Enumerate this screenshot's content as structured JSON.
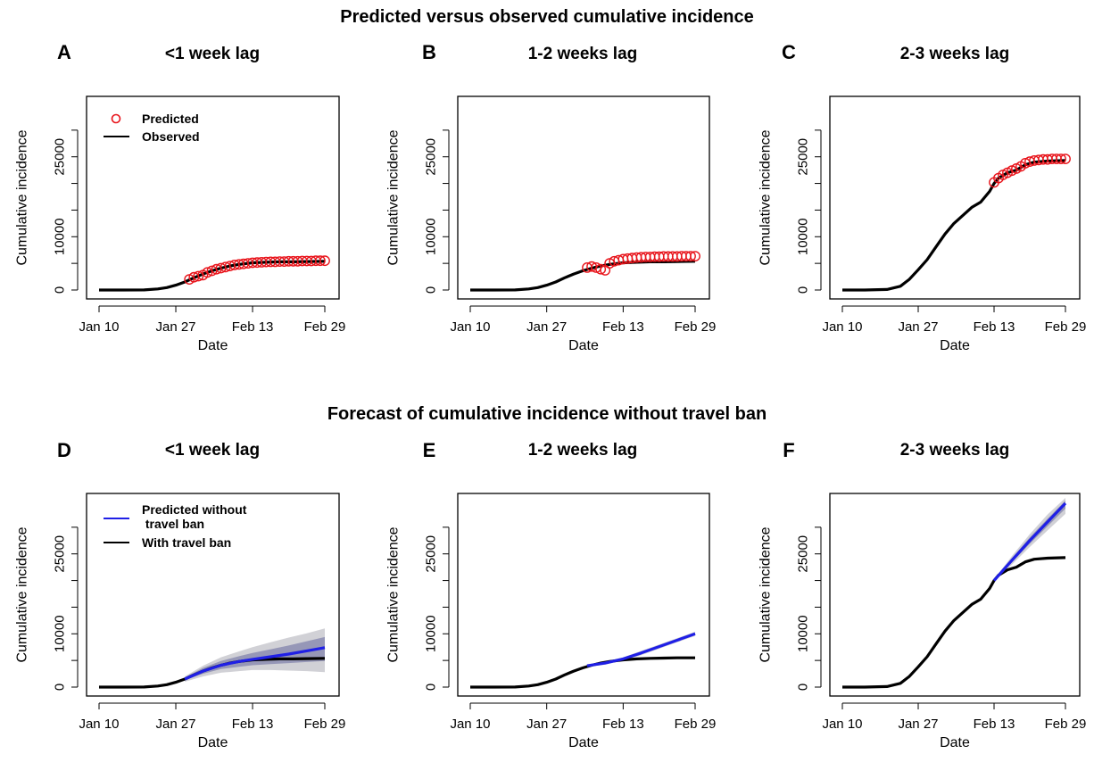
{
  "sections": {
    "top_title": "Predicted versus observed cumulative incidence",
    "bottom_title": "Forecast of cumulative incidence without travel ban"
  },
  "colors": {
    "observed": "#000000",
    "predicted_points": "#e8141b",
    "forecast_line": "#1f1fe6",
    "band_outer": "#c9c9cf",
    "band_inner": "#8f90b4"
  },
  "chart_data": [
    {
      "panel_letter": "A",
      "title": "<1 week lag",
      "type": "line",
      "xlabel": "Date",
      "ylabel": "Cumulative incidence",
      "x_ticks": [
        "Jan 10",
        "Jan 27",
        "Feb 13",
        "Feb 29"
      ],
      "y_ticks": [
        0,
        10000,
        25000
      ],
      "ylim": [
        0,
        35000
      ],
      "grid": false,
      "legend_position": "top-left",
      "legend": [
        {
          "label": "Predicted",
          "style": "marker"
        },
        {
          "label": "Observed",
          "style": "line"
        }
      ],
      "series": [
        {
          "name": "Observed",
          "kind": "line",
          "key": "observed",
          "x": [
            "Jan 10",
            "Jan 15",
            "Jan 20",
            "Jan 23",
            "Jan 25",
            "Jan 27",
            "Jan 29",
            "Jan 31",
            "Feb 2",
            "Feb 4",
            "Feb 6",
            "Feb 8",
            "Feb 10",
            "Feb 13",
            "Feb 16",
            "Feb 19",
            "Feb 22",
            "Feb 25",
            "Feb 29"
          ],
          "y": [
            0,
            0,
            20,
            200,
            450,
            900,
            1500,
            2300,
            3000,
            3600,
            4100,
            4500,
            4800,
            5100,
            5200,
            5300,
            5300,
            5350,
            5400
          ]
        },
        {
          "name": "Predicted",
          "kind": "points",
          "key": "predicted",
          "x": [
            "Jan 30",
            "Jan 31",
            "Feb 1",
            "Feb 2",
            "Feb 3",
            "Feb 4",
            "Feb 5",
            "Feb 6",
            "Feb 7",
            "Feb 8",
            "Feb 9",
            "Feb 10",
            "Feb 11",
            "Feb 12",
            "Feb 13",
            "Feb 14",
            "Feb 15",
            "Feb 16",
            "Feb 17",
            "Feb 18",
            "Feb 19",
            "Feb 20",
            "Feb 21",
            "Feb 22",
            "Feb 23",
            "Feb 24",
            "Feb 25",
            "Feb 26",
            "Feb 27",
            "Feb 28",
            "Feb 29"
          ],
          "y": [
            2000,
            2400,
            2600,
            2800,
            3300,
            3600,
            3900,
            4100,
            4300,
            4500,
            4700,
            4800,
            4900,
            5000,
            5100,
            5150,
            5200,
            5250,
            5300,
            5300,
            5350,
            5350,
            5400,
            5400,
            5400,
            5450,
            5450,
            5450,
            5500,
            5500,
            5500
          ]
        }
      ]
    },
    {
      "panel_letter": "B",
      "title": "1-2 weeks lag",
      "type": "line",
      "xlabel": "Date",
      "ylabel": "Cumulative incidence",
      "x_ticks": [
        "Jan 10",
        "Jan 27",
        "Feb 13",
        "Feb 29"
      ],
      "y_ticks": [
        0,
        10000,
        25000
      ],
      "ylim": [
        0,
        35000
      ],
      "grid": false,
      "series": [
        {
          "name": "Observed",
          "kind": "line",
          "key": "observed",
          "x": [
            "Jan 10",
            "Jan 15",
            "Jan 20",
            "Jan 23",
            "Jan 25",
            "Jan 27",
            "Jan 29",
            "Jan 31",
            "Feb 2",
            "Feb 4",
            "Feb 6",
            "Feb 8",
            "Feb 10",
            "Feb 13",
            "Feb 16",
            "Feb 19",
            "Feb 22",
            "Feb 25",
            "Feb 29"
          ],
          "y": [
            0,
            0,
            20,
            200,
            450,
            900,
            1500,
            2300,
            3000,
            3600,
            4100,
            4500,
            4800,
            5100,
            5200,
            5300,
            5300,
            5350,
            5400
          ]
        },
        {
          "name": "Predicted",
          "kind": "points",
          "key": "predicted",
          "x": [
            "Feb 5",
            "Feb 6",
            "Feb 7",
            "Feb 8",
            "Feb 9",
            "Feb 10",
            "Feb 11",
            "Feb 12",
            "Feb 13",
            "Feb 14",
            "Feb 15",
            "Feb 16",
            "Feb 17",
            "Feb 18",
            "Feb 19",
            "Feb 20",
            "Feb 21",
            "Feb 22",
            "Feb 23",
            "Feb 24",
            "Feb 25",
            "Feb 26",
            "Feb 27",
            "Feb 28",
            "Feb 29"
          ],
          "y": [
            4200,
            4400,
            4200,
            3900,
            3700,
            5000,
            5400,
            5600,
            5800,
            5900,
            6000,
            6100,
            6150,
            6200,
            6200,
            6250,
            6250,
            6300,
            6300,
            6300,
            6300,
            6350,
            6350,
            6350,
            6350
          ]
        }
      ]
    },
    {
      "panel_letter": "C",
      "title": "2-3 weeks lag",
      "type": "line",
      "xlabel": "Date",
      "ylabel": "Cumulative incidence",
      "x_ticks": [
        "Jan 10",
        "Jan 27",
        "Feb 13",
        "Feb 29"
      ],
      "y_ticks": [
        0,
        10000,
        25000
      ],
      "ylim": [
        0,
        35000
      ],
      "grid": false,
      "series": [
        {
          "name": "Observed",
          "kind": "line",
          "key": "observed",
          "x": [
            "Jan 10",
            "Jan 15",
            "Jan 20",
            "Jan 23",
            "Jan 25",
            "Jan 27",
            "Jan 29",
            "Jan 31",
            "Feb 2",
            "Feb 4",
            "Feb 6",
            "Feb 8",
            "Feb 10",
            "Feb 12",
            "Feb 13",
            "Feb 14",
            "Feb 16",
            "Feb 18",
            "Feb 20",
            "Feb 22",
            "Feb 25",
            "Feb 29"
          ],
          "y": [
            0,
            0,
            100,
            700,
            2000,
            3800,
            5700,
            8100,
            10500,
            12500,
            14000,
            15500,
            16500,
            18500,
            20000,
            21000,
            22000,
            22500,
            23500,
            24000,
            24200,
            24300
          ]
        },
        {
          "name": "Predicted",
          "kind": "points",
          "key": "predicted",
          "x": [
            "Feb 13",
            "Feb 14",
            "Feb 15",
            "Feb 16",
            "Feb 17",
            "Feb 18",
            "Feb 19",
            "Feb 20",
            "Feb 21",
            "Feb 22",
            "Feb 23",
            "Feb 24",
            "Feb 25",
            "Feb 26",
            "Feb 27",
            "Feb 28",
            "Feb 29"
          ],
          "y": [
            20200,
            21000,
            21600,
            22000,
            22400,
            22800,
            23200,
            23800,
            24100,
            24300,
            24400,
            24500,
            24500,
            24600,
            24600,
            24600,
            24600
          ]
        }
      ]
    },
    {
      "panel_letter": "D",
      "title": "<1 week lag",
      "type": "line",
      "xlabel": "Date",
      "ylabel": "Cumulative incidence",
      "x_ticks": [
        "Jan 10",
        "Jan 27",
        "Feb 13",
        "Feb 29"
      ],
      "y_ticks": [
        0,
        10000,
        25000
      ],
      "ylim": [
        0,
        35000
      ],
      "grid": false,
      "legend_position": "top-left",
      "legend": [
        {
          "label": "Predicted without travel ban",
          "lines": [
            "Predicted without",
            " travel ban"
          ],
          "style": "line",
          "key": "forecast"
        },
        {
          "label": "With travel ban",
          "style": "line",
          "key": "observed"
        }
      ],
      "series": [
        {
          "name": "With travel ban",
          "kind": "line",
          "key": "observed",
          "x": [
            "Jan 10",
            "Jan 15",
            "Jan 20",
            "Jan 23",
            "Jan 25",
            "Jan 27",
            "Jan 29",
            "Jan 31",
            "Feb 2",
            "Feb 4",
            "Feb 6",
            "Feb 8",
            "Feb 10",
            "Feb 13",
            "Feb 16",
            "Feb 19",
            "Feb 22",
            "Feb 25",
            "Feb 29"
          ],
          "y": [
            0,
            0,
            20,
            200,
            450,
            900,
            1500,
            2300,
            3000,
            3600,
            4100,
            4500,
            4800,
            5100,
            5200,
            5300,
            5300,
            5350,
            5400
          ]
        },
        {
          "name": "Predicted without travel ban",
          "kind": "line",
          "key": "forecast",
          "x": [
            "Jan 29",
            "Feb 2",
            "Feb 6",
            "Feb 10",
            "Feb 13",
            "Feb 17",
            "Feb 21",
            "Feb 25",
            "Feb 29"
          ],
          "y": [
            1500,
            3000,
            4100,
            4800,
            5200,
            5700,
            6200,
            6800,
            7400
          ]
        },
        {
          "name": "band_outer",
          "kind": "band",
          "key": "band_outer",
          "x": [
            "Jan 29",
            "Feb 2",
            "Feb 6",
            "Feb 10",
            "Feb 13",
            "Feb 17",
            "Feb 21",
            "Feb 25",
            "Feb 29"
          ],
          "lower": [
            1000,
            2000,
            2700,
            3000,
            3200,
            3200,
            3100,
            3000,
            2800
          ],
          "upper": [
            2000,
            4000,
            5600,
            6700,
            7500,
            8400,
            9300,
            10100,
            11000
          ]
        },
        {
          "name": "band_inner",
          "kind": "band",
          "key": "band_inner",
          "x": [
            "Jan 29",
            "Feb 2",
            "Feb 6",
            "Feb 10",
            "Feb 13",
            "Feb 17",
            "Feb 21",
            "Feb 25",
            "Feb 29"
          ],
          "lower": [
            1300,
            2500,
            3400,
            3800,
            4100,
            4300,
            4500,
            4700,
            4900
          ],
          "upper": [
            1800,
            3600,
            4900,
            5800,
            6400,
            7100,
            7800,
            8600,
            9400
          ]
        }
      ]
    },
    {
      "panel_letter": "E",
      "title": "1-2 weeks lag",
      "type": "line",
      "xlabel": "Date",
      "ylabel": "Cumulative incidence",
      "x_ticks": [
        "Jan 10",
        "Jan 27",
        "Feb 13",
        "Feb 29"
      ],
      "y_ticks": [
        0,
        10000,
        25000
      ],
      "ylim": [
        0,
        35000
      ],
      "grid": false,
      "series": [
        {
          "name": "With travel ban",
          "kind": "line",
          "key": "observed",
          "x": [
            "Jan 10",
            "Jan 15",
            "Jan 20",
            "Jan 23",
            "Jan 25",
            "Jan 27",
            "Jan 29",
            "Jan 31",
            "Feb 2",
            "Feb 4",
            "Feb 6",
            "Feb 8",
            "Feb 10",
            "Feb 13",
            "Feb 16",
            "Feb 19",
            "Feb 22",
            "Feb 25",
            "Feb 29"
          ],
          "y": [
            0,
            0,
            20,
            200,
            450,
            900,
            1500,
            2300,
            3000,
            3600,
            4100,
            4500,
            4800,
            5100,
            5300,
            5400,
            5450,
            5500,
            5500
          ]
        },
        {
          "name": "Predicted without travel ban",
          "kind": "line",
          "key": "forecast",
          "x": [
            "Feb 5",
            "Feb 9",
            "Feb 13",
            "Feb 17",
            "Feb 21",
            "Feb 25",
            "Feb 29"
          ],
          "y": [
            4000,
            4500,
            5300,
            6400,
            7600,
            8800,
            10000
          ]
        },
        {
          "name": "band_outer",
          "kind": "band",
          "key": "band_outer",
          "x": [
            "Feb 5",
            "Feb 9",
            "Feb 13",
            "Feb 17",
            "Feb 21",
            "Feb 25",
            "Feb 29"
          ],
          "lower": [
            3800,
            4200,
            5000,
            6000,
            7200,
            8400,
            9600
          ],
          "upper": [
            4200,
            4800,
            5600,
            6800,
            8000,
            9200,
            10400
          ]
        },
        {
          "name": "band_inner",
          "kind": "band",
          "key": "band_inner",
          "x": [
            "Feb 5",
            "Feb 9",
            "Feb 13",
            "Feb 17",
            "Feb 21",
            "Feb 25",
            "Feb 29"
          ],
          "lower": [
            3900,
            4350,
            5150,
            6200,
            7400,
            8600,
            9800
          ],
          "upper": [
            4100,
            4650,
            5450,
            6600,
            7800,
            9000,
            10200
          ]
        }
      ]
    },
    {
      "panel_letter": "F",
      "title": "2-3 weeks lag",
      "type": "line",
      "xlabel": "Date",
      "ylabel": "Cumulative incidence",
      "x_ticks": [
        "Jan 10",
        "Jan 27",
        "Feb 13",
        "Feb 29"
      ],
      "y_ticks": [
        0,
        10000,
        25000
      ],
      "ylim": [
        0,
        35000
      ],
      "grid": false,
      "series": [
        {
          "name": "With travel ban",
          "kind": "line",
          "key": "observed",
          "x": [
            "Jan 10",
            "Jan 15",
            "Jan 20",
            "Jan 23",
            "Jan 25",
            "Jan 27",
            "Jan 29",
            "Jan 31",
            "Feb 2",
            "Feb 4",
            "Feb 6",
            "Feb 8",
            "Feb 10",
            "Feb 12",
            "Feb 13",
            "Feb 14",
            "Feb 16",
            "Feb 18",
            "Feb 20",
            "Feb 22",
            "Feb 25",
            "Feb 29"
          ],
          "y": [
            0,
            0,
            100,
            700,
            2000,
            3800,
            5700,
            8100,
            10500,
            12500,
            14000,
            15500,
            16500,
            18500,
            20000,
            21000,
            22000,
            22500,
            23500,
            24000,
            24200,
            24300
          ]
        },
        {
          "name": "Predicted without travel ban",
          "kind": "line",
          "key": "forecast",
          "x": [
            "Feb 13",
            "Feb 17",
            "Feb 21",
            "Feb 25",
            "Feb 29"
          ],
          "y": [
            20000,
            23800,
            27500,
            31000,
            34500
          ]
        },
        {
          "name": "band_outer",
          "kind": "band",
          "key": "band_outer",
          "x": [
            "Feb 13",
            "Feb 17",
            "Feb 21",
            "Feb 25",
            "Feb 29"
          ],
          "lower": [
            19800,
            23000,
            26300,
            29400,
            32500
          ],
          "upper": [
            20200,
            24600,
            28700,
            32400,
            35500
          ]
        },
        {
          "name": "band_inner",
          "kind": "band",
          "key": "band_inner",
          "x": [
            "Feb 13",
            "Feb 17",
            "Feb 21",
            "Feb 25",
            "Feb 29"
          ],
          "lower": [
            19900,
            23400,
            26900,
            30200,
            33500
          ],
          "upper": [
            20100,
            24200,
            28100,
            31600,
            35000
          ]
        }
      ]
    }
  ]
}
